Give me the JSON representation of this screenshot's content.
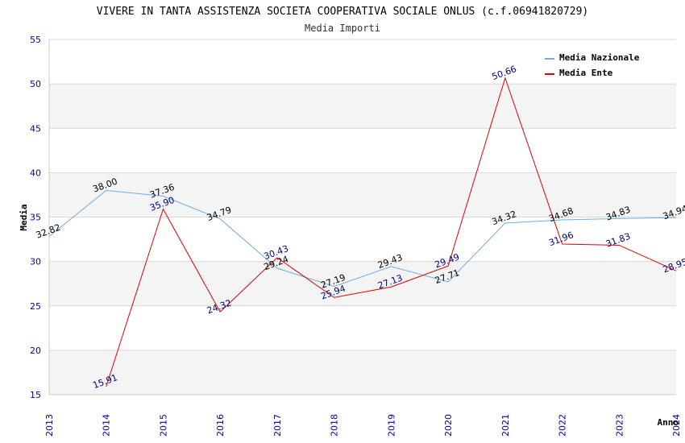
{
  "chart_data": {
    "type": "line",
    "title": "VIVERE IN TANTA ASSISTENZA SOCIETA COOPERATIVA SOCIALE ONLUS (c.f.06941820729)",
    "subtitle": "Media Importi",
    "xlabel": "Anno",
    "ylabel": "Media",
    "ylim": [
      15,
      55
    ],
    "yticks": [
      15,
      20,
      25,
      30,
      35,
      40,
      45,
      50,
      55
    ],
    "x": [
      "2013",
      "2014",
      "2015",
      "2016",
      "2017",
      "2018",
      "2019",
      "2020",
      "2021",
      "2022",
      "2023",
      "2024"
    ],
    "grid": true,
    "legend_position": "top-right",
    "series": [
      {
        "name": "Media Nazionale",
        "color": "#6aaee8",
        "values": [
          32.82,
          38.0,
          37.36,
          34.79,
          29.24,
          27.19,
          29.43,
          27.71,
          34.32,
          34.68,
          34.83,
          34.94
        ],
        "labels": [
          "32.82",
          "38.00",
          "37.36",
          "34.79",
          "29.24",
          "27.19",
          "29.43",
          "27.71",
          "34.32",
          "34.68",
          "34.83",
          "34.94"
        ]
      },
      {
        "name": "Media Ente",
        "color": "#e00000",
        "values": [
          null,
          15.91,
          35.9,
          24.32,
          30.43,
          25.94,
          27.13,
          29.49,
          50.66,
          31.96,
          31.83,
          28.95
        ],
        "labels": [
          "",
          "15.91",
          "35.90",
          "24.32",
          "30.43",
          "25.94",
          "27.13",
          "29.49",
          "50.66",
          "31.96",
          "31.83",
          "28.95"
        ]
      }
    ]
  }
}
